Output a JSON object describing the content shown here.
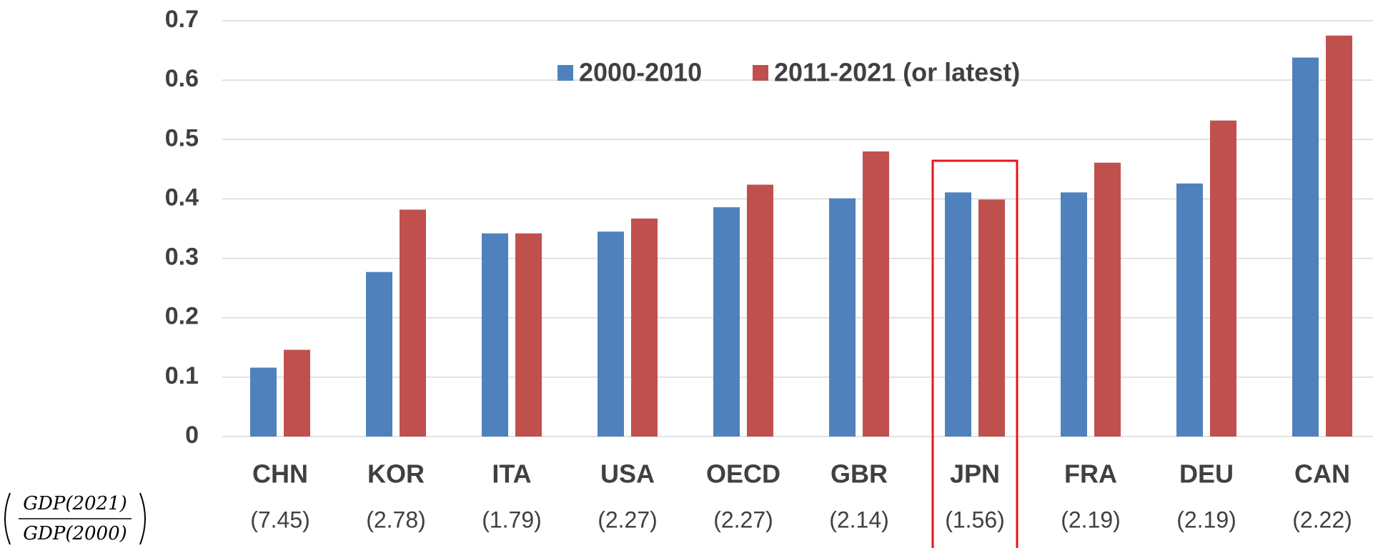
{
  "chart_data": {
    "type": "bar",
    "categories": [
      "CHN",
      "KOR",
      "ITA",
      "USA",
      "OECD",
      "GBR",
      "JPN",
      "FRA",
      "DEU",
      "CAN"
    ],
    "sub_labels": [
      "(7.45)",
      "(2.78)",
      "(1.79)",
      "(2.27)",
      "(2.27)",
      "(2.14)",
      "(1.56)",
      "(2.19)",
      "(2.19)",
      "(2.22)"
    ],
    "ratio_label": {
      "numerator": "GDP(2021)",
      "denominator": "GDP(2000)"
    },
    "series": [
      {
        "name": "2000-2010",
        "color": "#4f81bd",
        "values": [
          0.116,
          0.277,
          0.342,
          0.345,
          0.386,
          0.401,
          0.411,
          0.411,
          0.426,
          0.638
        ]
      },
      {
        "name": "2011-2021 (or latest)",
        "color": "#c0504d",
        "values": [
          0.146,
          0.382,
          0.342,
          0.367,
          0.424,
          0.48,
          0.399,
          0.461,
          0.532,
          0.675
        ]
      }
    ],
    "ylim": [
      0,
      0.7
    ],
    "yticks": [
      0,
      0.1,
      0.2,
      0.3,
      0.4,
      0.5,
      0.6,
      0.7
    ],
    "grid": true,
    "legend": "top",
    "highlight": "JPN",
    "highlight_color": "#e8131b"
  }
}
